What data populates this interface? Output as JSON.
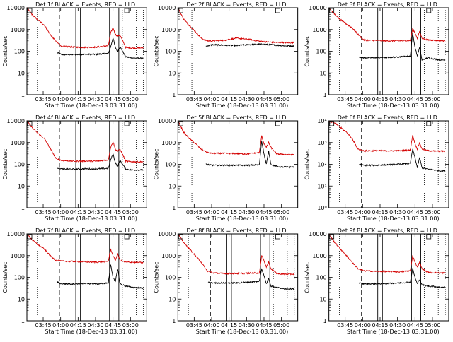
{
  "figure": {
    "ylabel": "Counts/sec",
    "xlabel": "Start Time (18-Dec-13 03:31:00)",
    "x_tick_labels": [
      "03:45",
      "04:00",
      "04:15",
      "04:30",
      "04:45",
      "05:00"
    ],
    "colors": {
      "events": "#000000",
      "lld": "#d40000",
      "axes": "#000000"
    }
  },
  "chart_data": [
    {
      "type": "line",
      "panel": "det-1f",
      "title": "Det 1f BLACK = Events, RED = LLD",
      "xlabel": "Start Time (18-Dec-13 03:31:00)",
      "ylabel": "Counts/sec",
      "y_scale": "log",
      "ylim": [
        1,
        10000
      ],
      "xlim_minutes": [
        0,
        103
      ],
      "y_tick_labels": [
        "1",
        "10",
        "100",
        "1000",
        "10000"
      ],
      "dotted_vlines_minutes": [
        9,
        82,
        94,
        100
      ],
      "dashed_vlines_minutes": [
        28
      ],
      "solid_vlines_minutes": [
        42,
        46,
        71,
        79
      ],
      "series": [
        {
          "name": "Events",
          "x": [
            26,
            30,
            40,
            50,
            60,
            70,
            72,
            74,
            76,
            78,
            80,
            85,
            90,
            95,
            100
          ],
          "y": [
            85,
            70,
            70,
            72,
            72,
            80,
            160,
            420,
            150,
            100,
            160,
            55,
            50,
            48,
            47
          ]
        },
        {
          "name": "LLD",
          "x": [
            0,
            5,
            10,
            15,
            20,
            25,
            30,
            40,
            50,
            60,
            70,
            72,
            74,
            76,
            78,
            80,
            85,
            90,
            95,
            100
          ],
          "y": [
            10000,
            4500,
            2600,
            1600,
            600,
            280,
            170,
            155,
            150,
            155,
            180,
            700,
            1200,
            600,
            500,
            550,
            150,
            140,
            140,
            145
          ]
        }
      ]
    },
    {
      "type": "line",
      "panel": "det-2f",
      "title": "Det 2f BLACK = Events, RED = LLD",
      "xlabel": "Start Time (18-Dec-13 03:31:00)",
      "ylabel": "Counts/sec",
      "y_scale": "log",
      "ylim": [
        1,
        10000
      ],
      "xlim_minutes": [
        0,
        103
      ],
      "y_tick_labels": [
        "1",
        "10",
        "100",
        "1000",
        "10000"
      ],
      "dotted_vlines_minutes": [
        12,
        92,
        98
      ],
      "dashed_vlines_minutes": [
        25
      ],
      "solid_vlines_minutes": [],
      "series": [
        {
          "name": "Events",
          "x": [
            24,
            30,
            40,
            50,
            60,
            70,
            80,
            90,
            100
          ],
          "y": [
            170,
            200,
            190,
            180,
            200,
            210,
            200,
            180,
            175
          ]
        },
        {
          "name": "LLD",
          "x": [
            0,
            5,
            10,
            15,
            20,
            25,
            30,
            40,
            50,
            60,
            70,
            80,
            90,
            100
          ],
          "y": [
            10000,
            3000,
            1500,
            800,
            400,
            300,
            300,
            320,
            400,
            360,
            290,
            260,
            250,
            250
          ]
        }
      ]
    },
    {
      "type": "line",
      "panel": "det-3f",
      "title": "Det 3f BLACK = Events, RED = LLD",
      "xlabel": "Start Time (18-Dec-13 03:31:00)",
      "ylabel": "Counts/sec",
      "y_scale": "log",
      "ylim": [
        1,
        10000
      ],
      "xlim_minutes": [
        0,
        103
      ],
      "y_tick_labels": [
        "1",
        "10",
        "100",
        "1000",
        "10000"
      ],
      "dotted_vlines_minutes": [
        9,
        82,
        94,
        100
      ],
      "dashed_vlines_minutes": [
        28
      ],
      "solid_vlines_minutes": [
        42,
        46,
        71,
        79
      ],
      "series": [
        {
          "name": "Events",
          "x": [
            26,
            30,
            40,
            50,
            60,
            70,
            72,
            74,
            76,
            78,
            80,
            85,
            90,
            95,
            100
          ],
          "y": [
            55,
            50,
            50,
            52,
            55,
            60,
            700,
            150,
            60,
            150,
            40,
            50,
            45,
            40,
            40
          ]
        },
        {
          "name": "LLD",
          "x": [
            0,
            5,
            10,
            15,
            20,
            25,
            30,
            40,
            50,
            60,
            70,
            72,
            74,
            76,
            78,
            80,
            85,
            90,
            95,
            100
          ],
          "y": [
            10000,
            5000,
            2800,
            1800,
            1200,
            600,
            330,
            310,
            300,
            300,
            310,
            1100,
            700,
            400,
            800,
            400,
            330,
            320,
            310,
            300
          ]
        }
      ]
    },
    {
      "type": "line",
      "panel": "det-4f",
      "title": "Det 4f BLACK = Events, RED = LLD",
      "xlabel": "Start Time (18-Dec-13 03:31:00)",
      "ylabel": "Counts/sec",
      "y_scale": "log",
      "ylim": [
        1,
        10000
      ],
      "xlim_minutes": [
        0,
        103
      ],
      "y_tick_labels": [
        "1",
        "10",
        "100",
        "1000",
        "10000"
      ],
      "dotted_vlines_minutes": [
        9,
        82,
        94,
        100
      ],
      "dashed_vlines_minutes": [
        28
      ],
      "solid_vlines_minutes": [
        42,
        46,
        71,
        79
      ],
      "series": [
        {
          "name": "Events",
          "x": [
            26,
            30,
            40,
            50,
            60,
            70,
            72,
            74,
            76,
            78,
            80,
            85,
            90,
            95,
            100
          ],
          "y": [
            70,
            60,
            60,
            62,
            62,
            65,
            160,
            300,
            120,
            80,
            150,
            60,
            55,
            55,
            55
          ]
        },
        {
          "name": "LLD",
          "x": [
            0,
            5,
            10,
            15,
            20,
            25,
            30,
            40,
            50,
            60,
            70,
            72,
            74,
            76,
            78,
            80,
            85,
            90,
            95,
            100
          ],
          "y": [
            10000,
            4500,
            2500,
            1500,
            550,
            180,
            150,
            140,
            140,
            140,
            160,
            600,
            1100,
            500,
            400,
            500,
            140,
            130,
            130,
            130
          ]
        }
      ]
    },
    {
      "type": "line",
      "panel": "det-5f",
      "title": "Det 5f BLACK = Events, RED = LLD",
      "xlabel": "Start Time (18-Dec-13 03:31:00)",
      "ylabel": "Counts/sec",
      "y_scale": "log",
      "ylim": [
        1,
        10000
      ],
      "xlim_minutes": [
        0,
        103
      ],
      "y_tick_labels": [
        "1",
        "10",
        "100",
        "1000",
        "10000"
      ],
      "dotted_vlines_minutes": [
        12,
        92,
        98
      ],
      "dashed_vlines_minutes": [
        25
      ],
      "solid_vlines_minutes": [],
      "series": [
        {
          "name": "Events",
          "x": [
            24,
            30,
            40,
            50,
            60,
            70,
            72,
            74,
            76,
            78,
            80,
            85,
            90,
            95,
            100
          ],
          "y": [
            100,
            90,
            90,
            90,
            90,
            95,
            1200,
            300,
            100,
            400,
            100,
            80,
            75,
            75,
            75
          ]
        },
        {
          "name": "LLD",
          "x": [
            0,
            5,
            10,
            15,
            20,
            25,
            30,
            40,
            50,
            60,
            70,
            72,
            74,
            76,
            78,
            80,
            85,
            90,
            95,
            100
          ],
          "y": [
            10000,
            3000,
            1500,
            900,
            500,
            350,
            320,
            320,
            310,
            300,
            350,
            2000,
            900,
            600,
            1000,
            600,
            300,
            290,
            280,
            280
          ]
        }
      ]
    },
    {
      "type": "line",
      "panel": "det-6f",
      "title": "Det 6f BLACK = Events, RED = LLD",
      "xlabel": "Start Time (18-Dec-13 03:31:00)",
      "ylabel": "Counts/sec",
      "y_scale": "log",
      "ylim": [
        1,
        10000
      ],
      "xlim_minutes": [
        0,
        103
      ],
      "y_tick_labels": [
        "10⁰",
        "10¹",
        "10²",
        "10³",
        "10⁴"
      ],
      "dotted_vlines_minutes": [
        9,
        82,
        94,
        100
      ],
      "dashed_vlines_minutes": [
        28
      ],
      "solid_vlines_minutes": [],
      "series": [
        {
          "name": "Events",
          "x": [
            26,
            30,
            40,
            50,
            60,
            70,
            72,
            74,
            76,
            78,
            80,
            85,
            90,
            95,
            100
          ],
          "y": [
            100,
            90,
            90,
            95,
            100,
            110,
            500,
            200,
            70,
            200,
            70,
            60,
            55,
            50,
            50
          ]
        },
        {
          "name": "LLD",
          "x": [
            0,
            5,
            10,
            15,
            20,
            25,
            30,
            40,
            50,
            60,
            70,
            72,
            74,
            76,
            78,
            80,
            85,
            90,
            95,
            100
          ],
          "y": [
            10000,
            8000,
            5000,
            3000,
            1500,
            500,
            420,
            420,
            420,
            420,
            450,
            2200,
            900,
            500,
            1000,
            500,
            420,
            410,
            400,
            400
          ]
        }
      ]
    },
    {
      "type": "line",
      "panel": "det-7f",
      "title": "Det 7f BLACK = Events, RED = LLD",
      "xlabel": "Start Time (18-Dec-13 03:31:00)",
      "ylabel": "Counts/sec",
      "y_scale": "log",
      "ylim": [
        1,
        10000
      ],
      "xlim_minutes": [
        0,
        103
      ],
      "y_tick_labels": [
        "1",
        "10",
        "100",
        "1000",
        "10000"
      ],
      "dotted_vlines_minutes": [
        9,
        82,
        94,
        100
      ],
      "dashed_vlines_minutes": [
        28
      ],
      "solid_vlines_minutes": [
        42,
        46,
        71,
        79
      ],
      "series": [
        {
          "name": "Events",
          "x": [
            26,
            30,
            40,
            50,
            60,
            70,
            72,
            74,
            76,
            78,
            80,
            85,
            90,
            95,
            100
          ],
          "y": [
            60,
            50,
            50,
            52,
            50,
            55,
            400,
            100,
            60,
            250,
            50,
            40,
            35,
            33,
            32
          ]
        },
        {
          "name": "LLD",
          "x": [
            0,
            5,
            10,
            15,
            20,
            25,
            30,
            40,
            50,
            60,
            70,
            72,
            74,
            76,
            78,
            80,
            85,
            90,
            95,
            100
          ],
          "y": [
            10000,
            5000,
            3000,
            2000,
            1000,
            600,
            560,
            540,
            520,
            500,
            550,
            2000,
            1000,
            600,
            1200,
            600,
            500,
            500,
            480,
            480
          ]
        }
      ]
    },
    {
      "type": "line",
      "panel": "det-8f",
      "title": "Det 8f BLACK = Events, RED = LLD",
      "xlabel": "Start Time (18-Dec-13 03:31:00)",
      "ylabel": "Counts/sec",
      "y_scale": "log",
      "ylim": [
        1,
        10000
      ],
      "xlim_minutes": [
        0,
        103
      ],
      "y_tick_labels": [
        "1",
        "10",
        "100",
        "1000",
        "10000"
      ],
      "dotted_vlines_minutes": [
        9,
        82,
        94,
        100
      ],
      "dashed_vlines_minutes": [
        28
      ],
      "solid_vlines_minutes": [
        42,
        46,
        71,
        79
      ],
      "series": [
        {
          "name": "Events",
          "x": [
            26,
            30,
            40,
            50,
            60,
            70,
            72,
            74,
            76,
            78,
            80,
            85,
            90,
            95,
            100
          ],
          "y": [
            60,
            55,
            55,
            55,
            60,
            65,
            250,
            120,
            50,
            90,
            40,
            35,
            30,
            30,
            30
          ]
        },
        {
          "name": "LLD",
          "x": [
            0,
            5,
            10,
            15,
            20,
            25,
            30,
            40,
            50,
            60,
            70,
            72,
            74,
            76,
            78,
            80,
            85,
            90,
            95,
            100
          ],
          "y": [
            10000,
            4000,
            2000,
            1000,
            500,
            200,
            160,
            150,
            150,
            155,
            160,
            1000,
            600,
            300,
            500,
            250,
            150,
            140,
            140,
            140
          ]
        }
      ]
    },
    {
      "type": "line",
      "panel": "det-9f",
      "title": "Det 9f BLACK = Events, RED = LLD",
      "xlabel": "Start Time (18-Dec-13 03:31:00)",
      "ylabel": "Counts/sec",
      "y_scale": "log",
      "ylim": [
        1,
        10000
      ],
      "xlim_minutes": [
        0,
        103
      ],
      "y_tick_labels": [
        "1",
        "10",
        "100",
        "1000",
        "10000"
      ],
      "dotted_vlines_minutes": [
        9,
        82,
        94,
        100
      ],
      "dashed_vlines_minutes": [
        28
      ],
      "solid_vlines_minutes": [
        42,
        46,
        71,
        79
      ],
      "series": [
        {
          "name": "Events",
          "x": [
            26,
            30,
            40,
            50,
            60,
            70,
            72,
            74,
            76,
            78,
            80,
            85,
            90,
            95,
            100
          ],
          "y": [
            55,
            50,
            50,
            52,
            55,
            60,
            250,
            100,
            50,
            80,
            45,
            40,
            38,
            35,
            35
          ]
        },
        {
          "name": "LLD",
          "x": [
            0,
            5,
            10,
            15,
            20,
            25,
            30,
            40,
            50,
            60,
            70,
            72,
            74,
            76,
            78,
            80,
            85,
            90,
            95,
            100
          ],
          "y": [
            10000,
            4000,
            2000,
            1000,
            500,
            250,
            200,
            190,
            185,
            180,
            200,
            1000,
            500,
            300,
            500,
            250,
            170,
            165,
            160,
            160
          ]
        }
      ]
    }
  ]
}
